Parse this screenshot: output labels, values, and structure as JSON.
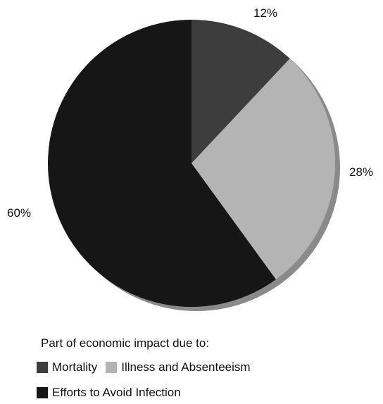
{
  "chart_data": {
    "type": "pie",
    "slices": [
      {
        "name": "Mortality",
        "value": 12,
        "label": "12%",
        "color": "#3d3d3d"
      },
      {
        "name": "Illness and Absenteeism",
        "value": 28,
        "label": "28%",
        "color": "#b4b4b4"
      },
      {
        "name": "Efforts to Avoid Infection",
        "value": 60,
        "label": "60%",
        "color": "#161616"
      }
    ],
    "legend_title": "Part of economic impact due to:",
    "shadow_color": "#8a8a8a"
  }
}
